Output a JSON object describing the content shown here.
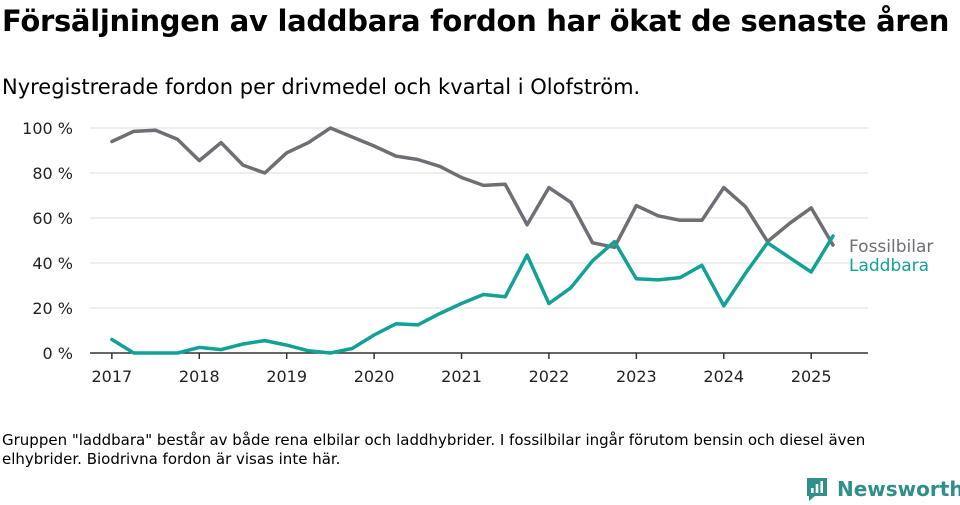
{
  "header": {
    "title": "Försäljningen av laddbara fordon har ökat de senaste åren",
    "subtitle": "Nyregistrerade fordon per drivmedel och kvartal i Olofström."
  },
  "footer": {
    "note": "Gruppen \"laddbara\" består av både rena elbilar och laddhybrider. I fossilbilar ingår förutom bensin och diesel även elhybrider. Biodrivna fordon är visas inte här.",
    "brand": "Newsworthy",
    "brand_icon": "newsworthy-logo-icon"
  },
  "colors": {
    "fossil": "#6e6e75",
    "laddbara": "#12a196",
    "grid": "#dddddd",
    "axis": "#333333"
  },
  "chart_data": {
    "type": "line",
    "title": "Försäljningen av laddbara fordon har ökat de senaste åren",
    "subtitle": "Nyregistrerade fordon per drivmedel och kvartal i Olofström.",
    "ylim": [
      0,
      100
    ],
    "yticks": [
      0,
      20,
      40,
      60,
      80,
      100
    ],
    "ytick_labels": [
      "0 %",
      "20 %",
      "40 %",
      "60 %",
      "80 %",
      "100 %"
    ],
    "xlim": [
      2016.75,
      2025.65
    ],
    "xticks": [
      2017,
      2018,
      2019,
      2020,
      2021,
      2022,
      2023,
      2024,
      2025
    ],
    "xtick_labels": [
      "2017",
      "2018",
      "2019",
      "2020",
      "2021",
      "2022",
      "2023",
      "2024",
      "2025"
    ],
    "grid": true,
    "legend": "inline-right",
    "x": [
      2017.0,
      2017.25,
      2017.5,
      2017.75,
      2018.0,
      2018.25,
      2018.5,
      2018.75,
      2019.0,
      2019.25,
      2019.5,
      2019.75,
      2020.0,
      2020.25,
      2020.5,
      2020.75,
      2021.0,
      2021.25,
      2021.5,
      2021.75,
      2022.0,
      2022.25,
      2022.5,
      2022.75,
      2023.0,
      2023.25,
      2023.5,
      2023.75,
      2024.0,
      2024.25,
      2024.5,
      2024.75,
      2025.0,
      2025.25
    ],
    "series": [
      {
        "name": "Fossilbilar",
        "color": "#6e6e75",
        "values": [
          94,
          98.5,
          99,
          95,
          85.5,
          93.5,
          83.5,
          80,
          89,
          93.5,
          100,
          96,
          92,
          87.5,
          86,
          83,
          78,
          74.5,
          75,
          57,
          73.5,
          67,
          49,
          47,
          65.5,
          61,
          59,
          59,
          73.5,
          65,
          49.5,
          57.5,
          64.5,
          48
        ]
      },
      {
        "name": "Laddbara",
        "color": "#12a196",
        "values": [
          6,
          0,
          0,
          0,
          2.5,
          1.5,
          4,
          5.5,
          3.5,
          1,
          0,
          2,
          8,
          13,
          12.5,
          17.5,
          22,
          26,
          25,
          43.5,
          22,
          29,
          41,
          49.5,
          33,
          32.5,
          33.5,
          39,
          21,
          35.5,
          49,
          42.5,
          36,
          52
        ]
      }
    ]
  }
}
